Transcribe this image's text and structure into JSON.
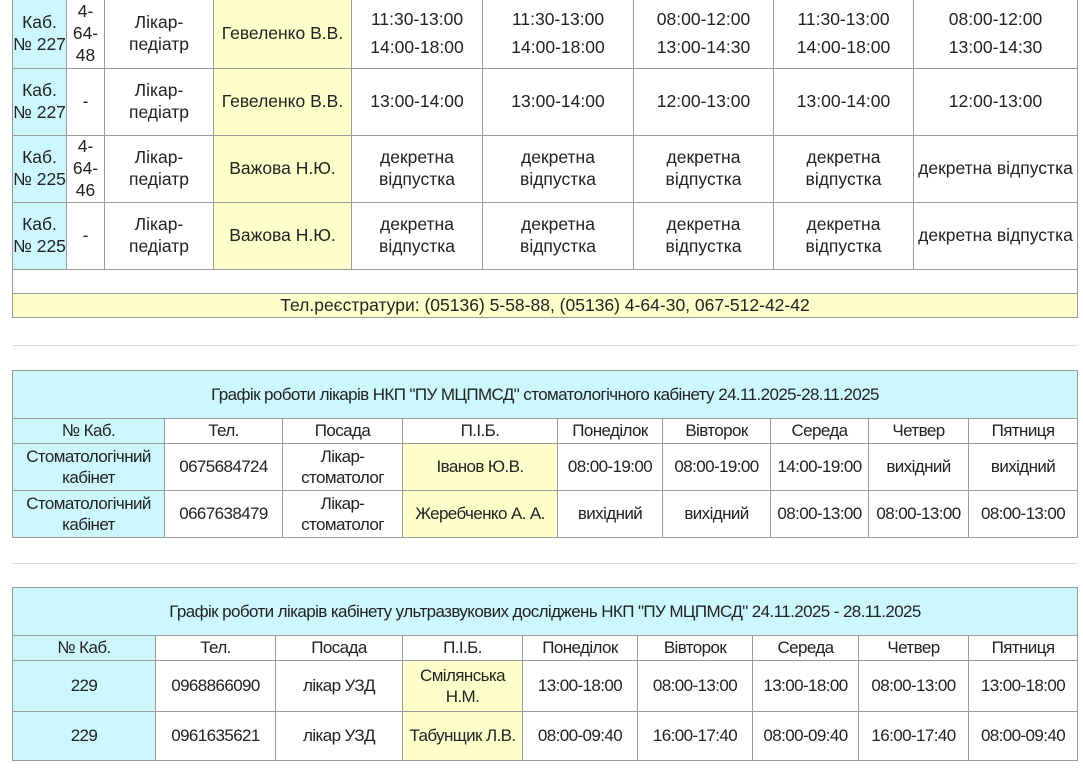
{
  "pediatric_table": {
    "rows": [
      {
        "cab": "Каб. № 227",
        "tel": "4-64-48",
        "position": "Лікар-педіатр",
        "name": "Гевеленко В.В.",
        "days": [
          [
            "11:30-13:00",
            "14:00-18:00"
          ],
          [
            "11:30-13:00",
            "14:00-18:00"
          ],
          [
            "08:00-12:00",
            "13:00-14:30"
          ],
          [
            "11:30-13:00",
            "14:00-18:00"
          ],
          [
            "08:00-12:00",
            "13:00-14:30"
          ]
        ]
      },
      {
        "cab": "Каб. № 227",
        "tel": "-",
        "position": "Лікар-педіатр",
        "name": "Гевеленко В.В.",
        "days": [
          [
            "13:00-14:00"
          ],
          [
            "13:00-14:00"
          ],
          [
            "12:00-13:00"
          ],
          [
            "13:00-14:00"
          ],
          [
            "12:00-13:00"
          ]
        ]
      },
      {
        "cab": "Каб. № 225",
        "tel": "4-64-46",
        "position": "Лікар-педіатр",
        "name": "Важова Н.Ю.",
        "days": [
          [
            "декретна відпустка"
          ],
          [
            "декретна відпустка"
          ],
          [
            "декретна відпустка"
          ],
          [
            "декретна відпустка"
          ],
          [
            "декретна відпустка"
          ]
        ]
      },
      {
        "cab": "Каб. № 225",
        "tel": "-",
        "position": "Лікар-педіатр",
        "name": "Важова Н.Ю.",
        "days": [
          [
            "декретна відпустка"
          ],
          [
            "декретна відпустка"
          ],
          [
            "декретна відпустка"
          ],
          [
            "декретна відпустка"
          ],
          [
            "декретна відпустка"
          ]
        ]
      }
    ],
    "footer": "Тел.реєстратури: (05136) 5-58-88, (05136) 4-64-30, 067-512-42-42"
  },
  "dental_table": {
    "title": "Графік роботи лікарів НКП \"ПУ МЦПМСД\" стоматологічного кабінету 24.11.2025-28.11.2025",
    "headers": [
      "№ Каб.",
      "Тел.",
      "Посада",
      "П.І.Б.",
      "Понеділок",
      "Вівторок",
      "Середа",
      "Четвер",
      "Пятниця"
    ],
    "rows": [
      [
        "Стоматологічний кабінет",
        "0675684724",
        "Лікар-стоматолог",
        "Іванов Ю.В.",
        "08:00-19:00",
        "08:00-19:00",
        "14:00-19:00",
        "вихідний",
        "вихідний"
      ],
      [
        "Стоматологічний кабінет",
        "0667638479",
        "Лікар-стоматолог",
        "Жеребченко А. А.",
        "вихідний",
        "вихідний",
        "08:00-13:00",
        "08:00-13:00",
        "08:00-13:00"
      ]
    ]
  },
  "ultrasound_table": {
    "title": "Графік роботи лікарів кабінету ультразвукових досліджень НКП \"ПУ МЦПМСД\" 24.11.2025 - 28.11.2025",
    "headers": [
      "№ Каб.",
      "Тел.",
      "Посада",
      "П.І.Б.",
      "Понеділок",
      "Вівторок",
      "Середа",
      "Четвер",
      "Пятниця"
    ],
    "rows": [
      [
        "229",
        "0968866090",
        "лікар УЗД",
        "Смілянська Н.М.",
        "13:00-18:00",
        "08:00-13:00",
        "13:00-18:00",
        "08:00-13:00",
        "13:00-18:00"
      ],
      [
        "229",
        "0961635621",
        "лікар УЗД",
        "Табунщик Л.В.",
        "08:00-09:40",
        "16:00-17:40",
        "08:00-09:40",
        "16:00-17:40",
        "08:00-09:40"
      ]
    ]
  },
  "colors": {
    "cabinet_cell": "#ccf7fd",
    "name_cell": "#ffffcc",
    "border": "#9a9a9a"
  }
}
